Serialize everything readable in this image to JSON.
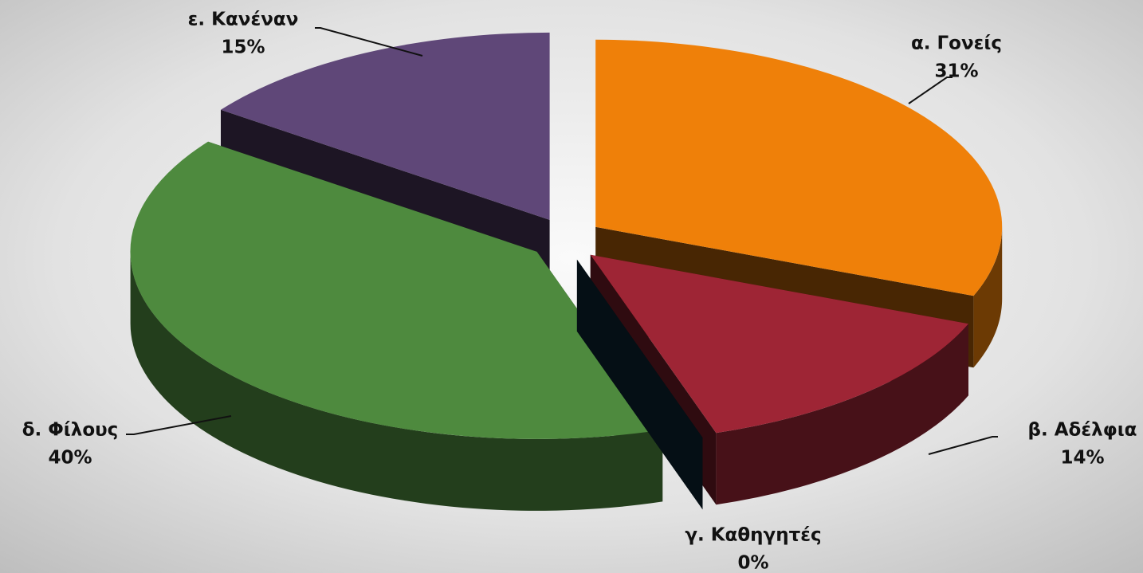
{
  "chart_data": {
    "type": "pie",
    "categories": [
      "α. Γονείς",
      "β. Αδέλφια",
      "γ. Καθηγητές",
      "δ. Φίλους",
      "ε. Κανέναν"
    ],
    "values": [
      31,
      14,
      0,
      40,
      15
    ],
    "value_labels": [
      "31%",
      "14%",
      "0%",
      "40%",
      "15%"
    ],
    "colors": [
      "#ef8009",
      "#9e2535",
      "#0f3347",
      "#4e8a3e",
      "#5f4778"
    ]
  }
}
